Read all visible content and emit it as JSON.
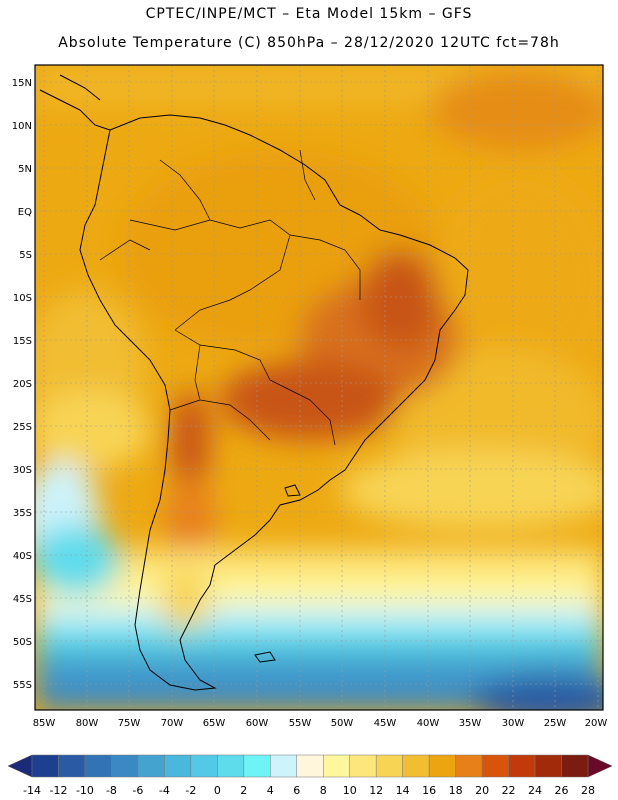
{
  "header": {
    "line1": "CPTEC/INPE/MCT –  Eta Model 15km – GFS",
    "line2": "Absolute Temperature (C) 850hPa – 28/12/2020 12UTC fct=78h"
  },
  "map": {
    "lat_labels": [
      "15N",
      "10N",
      "5N",
      "EQ",
      "5S",
      "10S",
      "15S",
      "20S",
      "25S",
      "30S",
      "35S",
      "40S",
      "45S",
      "50S",
      "55S"
    ],
    "lon_labels": [
      "85W",
      "80W",
      "75W",
      "70W",
      "65W",
      "60W",
      "55W",
      "50W",
      "45W",
      "40W",
      "35W",
      "30W",
      "25W",
      "20W"
    ]
  },
  "colorbar": {
    "labels": [
      "-14",
      "-12",
      "-10",
      "-8",
      "-6",
      "-4",
      "-2",
      "0",
      "2",
      "4",
      "6",
      "8",
      "10",
      "12",
      "14",
      "16",
      "18",
      "20",
      "22",
      "24",
      "26",
      "28"
    ],
    "colors": [
      "#1c3f8f",
      "#2a5aa3",
      "#3273b6",
      "#3a88c4",
      "#45a3cf",
      "#4ab7dc",
      "#52c9e6",
      "#5fdcec",
      "#6ef3f6",
      "#cdf3fb",
      "#fff6dc",
      "#fff79e",
      "#fde67c",
      "#f8d455",
      "#f1bd31",
      "#eca410",
      "#e8801a",
      "#d8540a",
      "#c23a0a",
      "#a02a0a",
      "#7a1c10"
    ]
  }
}
